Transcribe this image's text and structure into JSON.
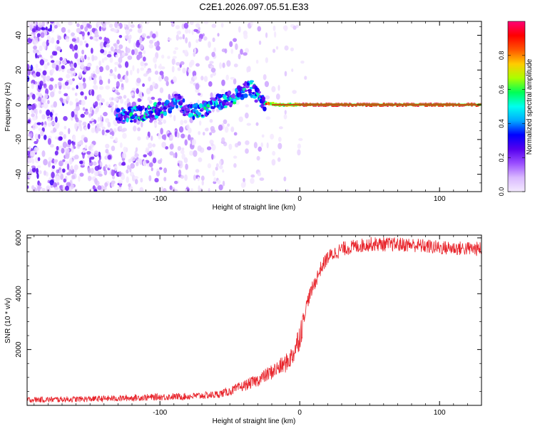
{
  "figure_title": "C2E1.2026.097.05.51.E33",
  "chart_data": [
    {
      "type": "heatmap",
      "id": "spectrogram",
      "title": "C2E1.2026.097.05.51.E33",
      "xlabel": "Height of straight line (km)",
      "ylabel": "Frequency (Hz)",
      "xlim": [
        -195,
        130
      ],
      "ylim": [
        -50,
        48
      ],
      "x_ticks": [
        -100,
        0,
        100
      ],
      "y_ticks": [
        -40,
        -20,
        0,
        20,
        40
      ],
      "colorbar": {
        "label": "Normalized spectral amplitude",
        "range": [
          0,
          1
        ],
        "ticks": [
          "0.0",
          "0.2",
          "0.4",
          "0.6",
          "0.8"
        ],
        "tick_values": [
          0,
          0.2,
          0.4,
          0.6,
          0.8
        ],
        "colors": [
          "#f4eaff",
          "#d9b8ff",
          "#9a4dff",
          "#5500ee",
          "#0000ff",
          "#00aaff",
          "#00ffee",
          "#00ff55",
          "#aaff00",
          "#ffcc00",
          "#ff5500",
          "#ff0000",
          "#ff0077"
        ]
      },
      "ridge": {
        "description": "carrier line near 0 Hz, strong for heights above about -30 km",
        "points": [
          [
            -130,
            -6
          ],
          [
            -110,
            -5
          ],
          [
            -95,
            -2
          ],
          [
            -88,
            3
          ],
          [
            -80,
            -4
          ],
          [
            -70,
            -3
          ],
          [
            -60,
            1
          ],
          [
            -50,
            3
          ],
          [
            -40,
            8
          ],
          [
            -35,
            10
          ],
          [
            -30,
            5
          ],
          [
            -25,
            1
          ],
          [
            -15,
            0
          ],
          [
            0,
            0
          ],
          [
            20,
            0
          ],
          [
            130,
            0
          ]
        ]
      }
    },
    {
      "type": "line",
      "id": "snr",
      "xlabel": "Height of straight line (km)",
      "ylabel": "SNR (10 * v/v)",
      "xlim": [
        -195,
        130
      ],
      "ylim": [
        0,
        6100
      ],
      "x_ticks": [
        -100,
        0,
        100
      ],
      "y_ticks": [
        2000,
        4000,
        6000
      ],
      "series": [
        {
          "name": "SNR",
          "color": "#e8232a",
          "key_points": [
            [
              -195,
              200
            ],
            [
              -160,
              220
            ],
            [
              -130,
              250
            ],
            [
              -100,
              300
            ],
            [
              -80,
              320
            ],
            [
              -60,
              380
            ],
            [
              -50,
              500
            ],
            [
              -40,
              700
            ],
            [
              -30,
              900
            ],
            [
              -20,
              1200
            ],
            [
              -10,
              1500
            ],
            [
              -5,
              1800
            ],
            [
              0,
              2500
            ],
            [
              3,
              3200
            ],
            [
              6,
              3800
            ],
            [
              10,
              4300
            ],
            [
              15,
              4900
            ],
            [
              20,
              5300
            ],
            [
              30,
              5600
            ],
            [
              50,
              5780
            ],
            [
              80,
              5750
            ],
            [
              100,
              5650
            ],
            [
              130,
              5600
            ]
          ]
        }
      ]
    }
  ]
}
